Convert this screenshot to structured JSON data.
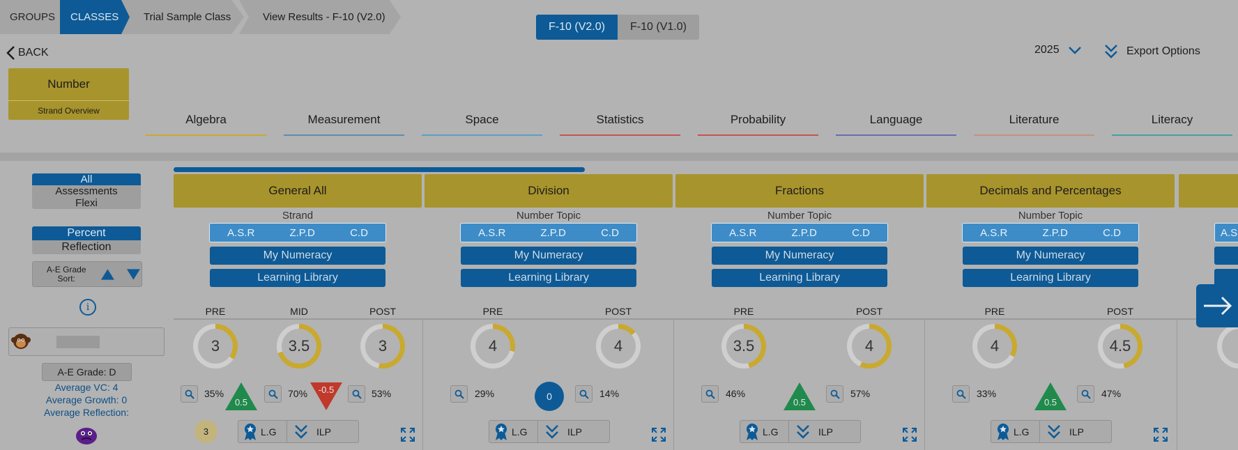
{
  "breadcrumb": {
    "groups": "GROUPS",
    "classes": "CLASSES",
    "class_name": "Trial Sample Class",
    "view": "View Results - F-10 (V2.0)"
  },
  "version_toggle": {
    "v2": "F-10 (V2.0)",
    "v1": "F-10 (V1.0)"
  },
  "back_label": "BACK",
  "year": "2025",
  "export_label": "Export Options",
  "strand": {
    "title": "Number",
    "subtitle": "Strand Overview"
  },
  "strand_tabs": [
    {
      "label": "Algebra",
      "color": "#c9a92e"
    },
    {
      "label": "Measurement",
      "color": "#5a8fb0"
    },
    {
      "label": "Space",
      "color": "#5aa0c8"
    },
    {
      "label": "Statistics",
      "color": "#c25450"
    },
    {
      "label": "Probability",
      "color": "#c25450"
    },
    {
      "label": "Language",
      "color": "#6a6ab8"
    },
    {
      "label": "Literature",
      "color": "#c89080"
    },
    {
      "label": "Literacy",
      "color": "#4aa0a0"
    }
  ],
  "filters": {
    "type": {
      "all": "All",
      "assessments": "Assessments",
      "flexi": "Flexi"
    },
    "mode": {
      "percent": "Percent",
      "reflection": "Reflection"
    },
    "sort_label": "A-E Grade Sort:"
  },
  "student": {
    "grade": "A-E Grade: D",
    "avg_vc": "Average VC: 4",
    "avg_growth": "Average Growth: 0",
    "avg_reflection": "Average Reflection:"
  },
  "badge_three": "3",
  "labels": {
    "asr": "A.S.R",
    "zpd": "Z.P.D",
    "cd": "C.D",
    "my_numeracy": "My Numeracy",
    "learning_library": "Learning Library",
    "lg": "L.G",
    "ilp": "ILP",
    "pre": "PRE",
    "mid": "MID",
    "post": "POST"
  },
  "topics": [
    {
      "title": "General All",
      "subtitle": "Strand",
      "pre": {
        "score": "3",
        "pct": "35%",
        "fill": 0.35
      },
      "mid": {
        "score": "3.5",
        "pct": "70%",
        "fill": 0.7
      },
      "post": {
        "score": "3",
        "pct": "53%",
        "fill": 0.53
      },
      "growth1": "0.5",
      "growth2": "-0.5"
    },
    {
      "title": "Division",
      "subtitle": "Number Topic",
      "pre": {
        "score": "4",
        "pct": "29%",
        "fill": 0.29
      },
      "post": {
        "score": "4",
        "pct": "14%",
        "fill": 0.14
      },
      "growth": "0"
    },
    {
      "title": "Fractions",
      "subtitle": "Number Topic",
      "pre": {
        "score": "3.5",
        "pct": "46%",
        "fill": 0.46
      },
      "post": {
        "score": "4",
        "pct": "57%",
        "fill": 0.57
      },
      "growth": "0.5"
    },
    {
      "title": "Decimals and Percentages",
      "subtitle": "Number Topic",
      "pre": {
        "score": "4",
        "pct": "33%",
        "fill": 0.33
      },
      "post": {
        "score": "4.5",
        "pct": "47%",
        "fill": 0.47
      },
      "growth": "0.5"
    }
  ],
  "colors": {
    "primary": "#0d5a96",
    "gold": "#a8942c",
    "ring": "#c9a92e",
    "green": "#1f8a4c",
    "red": "#c0392b"
  }
}
